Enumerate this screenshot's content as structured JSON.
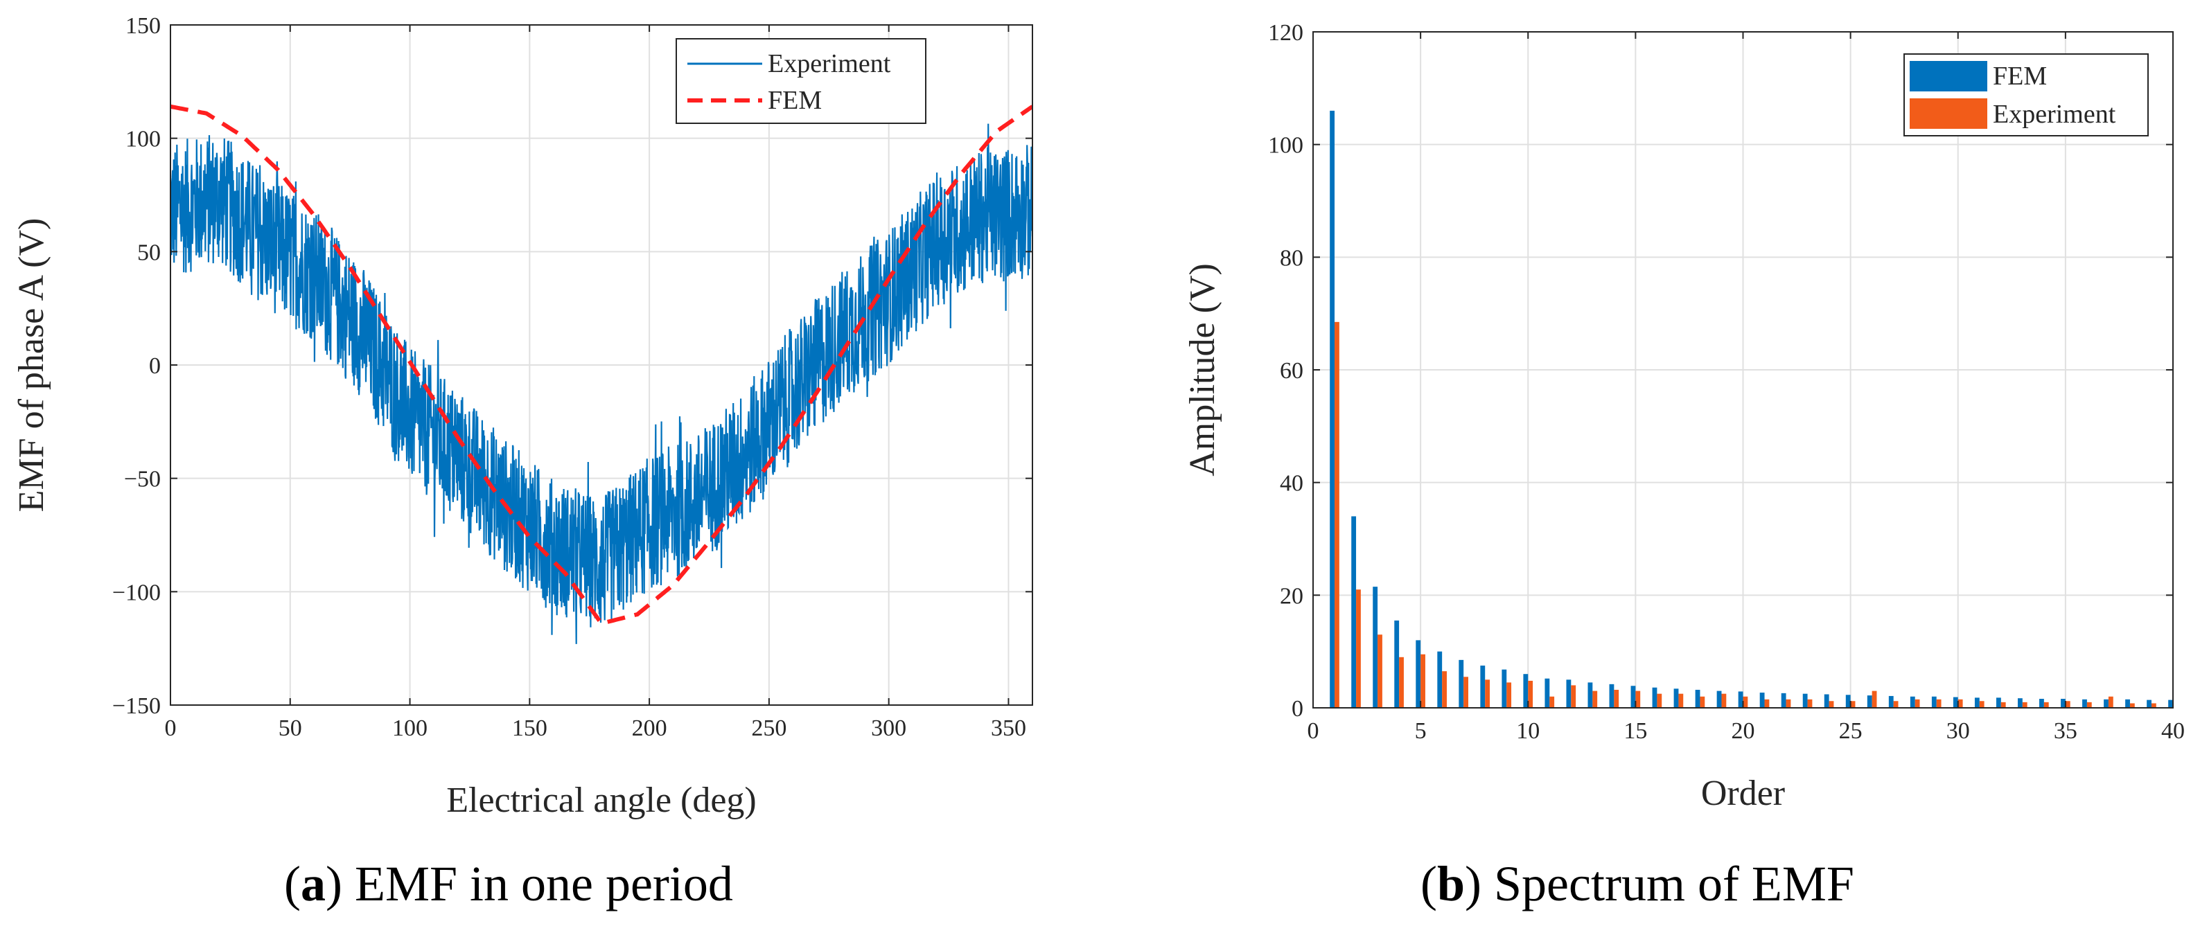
{
  "colors": {
    "experiment": "#0072BD",
    "fem_line": "#FF1F1F",
    "fem_bar": "#0072BD",
    "experiment_bar": "#F25C19",
    "grid": "#E0E0E0",
    "axis": "#262626"
  },
  "captions": {
    "a": {
      "letter": "a",
      "text": " EMF in one period"
    },
    "b": {
      "letter": "b",
      "text": " Spectrum of EMF"
    }
  },
  "chart_data": [
    {
      "type": "line",
      "xlabel": "Electrical angle (deg)",
      "ylabel": "EMF of phase A (V)",
      "xlim": [
        0,
        360
      ],
      "ylim": [
        -150,
        150
      ],
      "xticks": [
        0,
        50,
        100,
        150,
        200,
        250,
        300,
        350
      ],
      "yticks": [
        -150,
        -100,
        -50,
        0,
        50,
        100,
        150
      ],
      "grid": true,
      "legend_position": "top-right",
      "series": [
        {
          "name": "Experiment",
          "style": "solid-noisy",
          "x": [
            0,
            20,
            40,
            60,
            80,
            100,
            120,
            140,
            160,
            180,
            200,
            220,
            240,
            260,
            280,
            300,
            320,
            340,
            360
          ],
          "y": [
            68,
            74,
            55,
            40,
            15,
            -22,
            -40,
            -62,
            -80,
            -88,
            -70,
            -60,
            -40,
            -12,
            12,
            30,
            55,
            66,
            68
          ],
          "noise_amplitude": 30
        },
        {
          "name": "FEM",
          "style": "dashed",
          "x": [
            0,
            15,
            30,
            45,
            60,
            75,
            90,
            105,
            120,
            135,
            150,
            165,
            180,
            195,
            210,
            225,
            240,
            255,
            270,
            285,
            300,
            315,
            330,
            345,
            360
          ],
          "y": [
            114,
            111,
            101,
            86,
            66,
            43,
            18,
            -7,
            -32,
            -55,
            -76,
            -92,
            -114,
            -110,
            -97,
            -78,
            -58,
            -36,
            -12,
            13,
            38,
            62,
            84,
            103,
            114
          ]
        }
      ]
    },
    {
      "type": "bar",
      "xlabel": "Order",
      "ylabel": "Amplitude (V)",
      "xlim": [
        0,
        40
      ],
      "ylim": [
        0,
        120
      ],
      "xticks": [
        0,
        5,
        10,
        15,
        20,
        25,
        30,
        35,
        40
      ],
      "yticks": [
        0,
        20,
        40,
        60,
        80,
        100,
        120
      ],
      "grid": true,
      "legend_position": "top-right",
      "categories": [
        1,
        2,
        3,
        4,
        5,
        6,
        7,
        8,
        9,
        10,
        11,
        12,
        13,
        14,
        15,
        16,
        17,
        18,
        19,
        20,
        21,
        22,
        23,
        24,
        25,
        26,
        27,
        28,
        29,
        30,
        31,
        32,
        33,
        34,
        35,
        36,
        37,
        38,
        39,
        40
      ],
      "series": [
        {
          "name": "FEM",
          "values": [
            106,
            34,
            21.5,
            15.5,
            12,
            10,
            8.5,
            7.5,
            6.8,
            6,
            5.2,
            5,
            4.5,
            4.2,
            3.9,
            3.6,
            3.4,
            3.2,
            3,
            2.9,
            2.7,
            2.6,
            2.5,
            2.4,
            2.3,
            2.2,
            2.1,
            2,
            2,
            1.9,
            1.8,
            1.8,
            1.7,
            1.6,
            1.6,
            1.5,
            1.5,
            1.5,
            1.4,
            1.4
          ]
        },
        {
          "name": "Experiment",
          "values": [
            68.5,
            21,
            13,
            9,
            9.5,
            6.5,
            5.5,
            5,
            4.5,
            4.8,
            2,
            4,
            3,
            3.2,
            3,
            2.5,
            2.5,
            2,
            2.5,
            2,
            1.5,
            1.5,
            1.5,
            1.2,
            1.2,
            3,
            1.2,
            1.5,
            1.5,
            1.5,
            1.2,
            1,
            1,
            1,
            1.2,
            1,
            2,
            0.8,
            0.8,
            0.8
          ]
        }
      ]
    }
  ]
}
